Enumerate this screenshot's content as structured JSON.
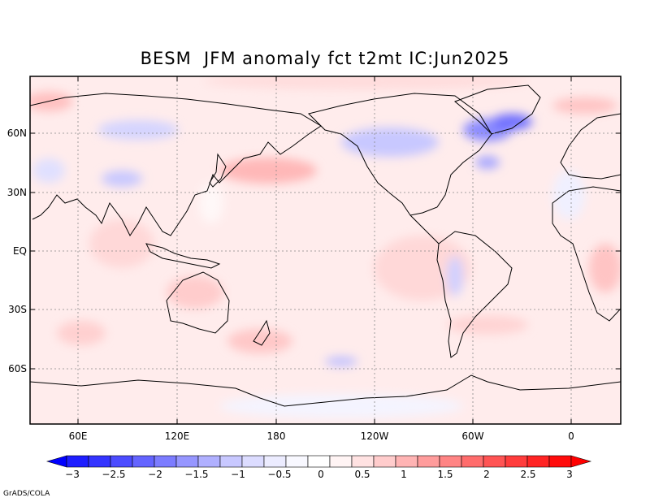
{
  "title": "BESM  JFM anomaly fct t2mt IC:Jun2025",
  "lon_labels": [
    "60E",
    "120E",
    "180",
    "120W",
    "60W",
    "0"
  ],
  "lat_labels": [
    "60N",
    "30N",
    "EQ",
    "30S",
    "60S"
  ],
  "colorbar": {
    "labels": [
      "-3",
      "-2.5",
      "-2",
      "-1.5",
      "-1",
      "-0.5",
      "0",
      "0.5",
      "1",
      "1.5",
      "2",
      "2.5",
      "3"
    ],
    "colors": [
      "#1e1eff",
      "#3434ff",
      "#4c4cff",
      "#6464ff",
      "#7c7cff",
      "#9696ff",
      "#b0b0ff",
      "#c8c8ff",
      "#dcdcff",
      "#ececff",
      "#f8f8ff",
      "#ffffff",
      "#fff4f4",
      "#ffe2e2",
      "#ffcccc",
      "#ffb4b4",
      "#ff9c9c",
      "#ff8484",
      "#ff6c6c",
      "#ff5454",
      "#ff3c3c",
      "#ff2424",
      "#ff0c0c"
    ],
    "under_color": "#0000ff",
    "over_color": "#ff0000"
  },
  "credit": "GrADS/COLA"
}
